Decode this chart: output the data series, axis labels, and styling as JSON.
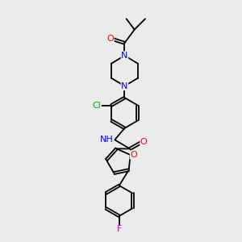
{
  "background_color": "#ebebeb",
  "bond_color": "#000000",
  "atom_colors": {
    "O": "#ff0000",
    "N": "#0000ff",
    "Cl": "#00aa00",
    "F": "#cc00cc",
    "C": "#000000",
    "H": "#000000"
  },
  "fig_width": 3.0,
  "fig_height": 3.0,
  "dpi": 100,
  "xlim": [
    0,
    10
  ],
  "ylim": [
    0,
    17
  ],
  "bond_lw": 1.3,
  "font_size": 7.5
}
